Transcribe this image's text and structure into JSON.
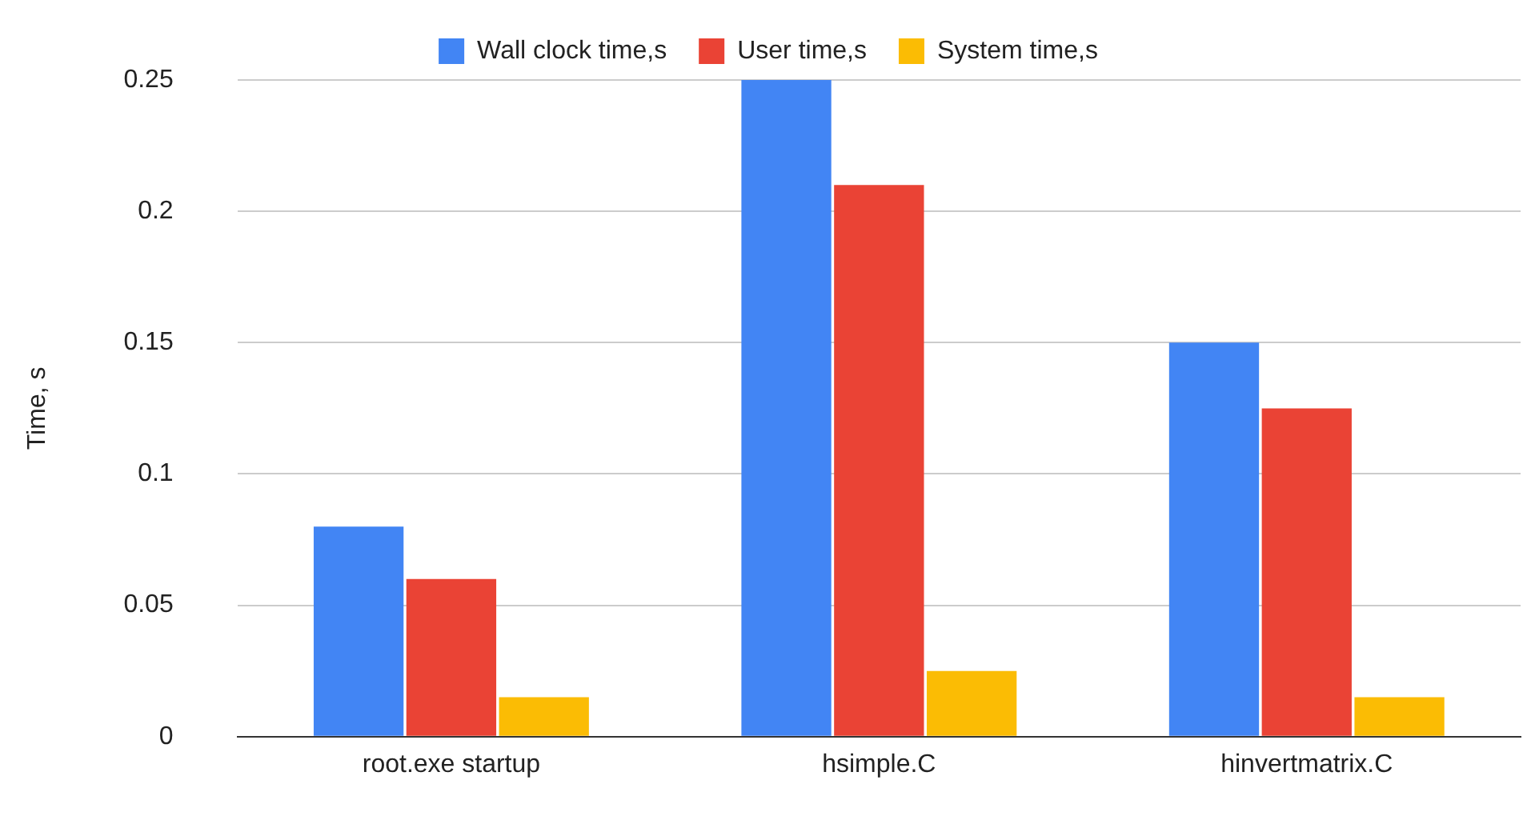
{
  "chart_data": {
    "type": "bar",
    "ylabel": "Time, s",
    "categories": [
      "root.exe startup",
      "hsimple.C",
      "hinvertmatrix.C"
    ],
    "series": [
      {
        "name": "Wall clock time,s",
        "color": "#4285f4",
        "values": [
          0.08,
          0.25,
          0.15
        ]
      },
      {
        "name": "User time,s",
        "color": "#ea4335",
        "values": [
          0.06,
          0.21,
          0.125
        ]
      },
      {
        "name": "System time,s",
        "color": "#fbbc04",
        "values": [
          0.015,
          0.025,
          0.015
        ]
      }
    ],
    "ylim": [
      0,
      0.25
    ],
    "yticks": [
      0,
      0.05,
      0.1,
      0.15,
      0.2,
      0.25
    ],
    "grid": "y",
    "legend": "top"
  }
}
